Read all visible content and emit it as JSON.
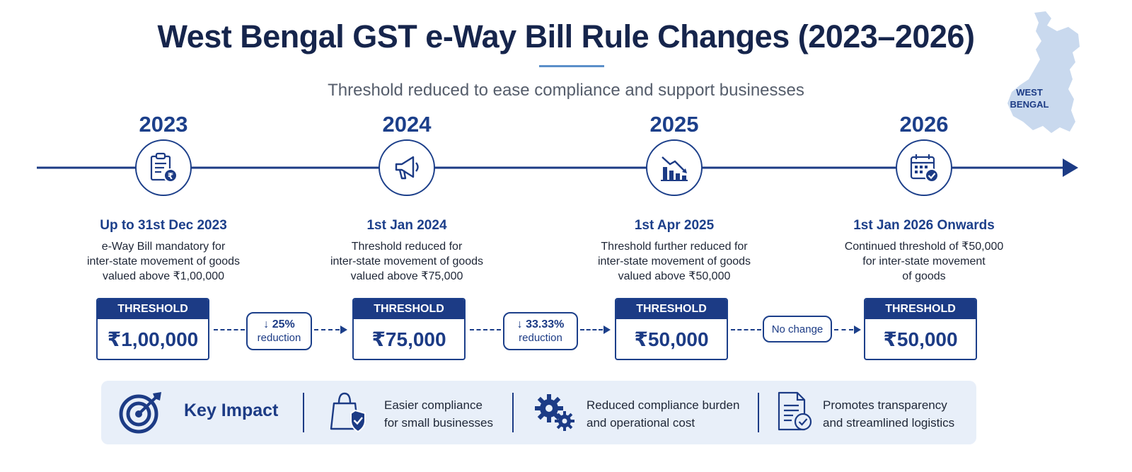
{
  "header": {
    "title": "West Bengal GST e-Way Bill Rule Changes (2023–2026)",
    "subtitle": "Threshold reduced to ease compliance and support businesses"
  },
  "map": {
    "label_line1": "WEST",
    "label_line2": "BENGAL"
  },
  "timeline": [
    {
      "year": "2023",
      "icon": "clipboard-rupee-icon",
      "date": "Up to 31st Dec 2023",
      "desc": [
        "e-Way Bill mandatory for",
        "inter-state movement of goods",
        "valued above ₹1,00,000"
      ],
      "threshold_label": "THRESHOLD",
      "threshold_value": "₹1,00,000"
    },
    {
      "year": "2024",
      "icon": "megaphone-icon",
      "date": "1st Jan 2024",
      "desc": [
        "Threshold reduced for",
        "inter-state movement of goods",
        "valued above ₹75,000"
      ],
      "threshold_label": "THRESHOLD",
      "threshold_value": "₹75,000"
    },
    {
      "year": "2025",
      "icon": "declining-chart-icon",
      "date": "1st Apr 2025",
      "desc": [
        "Threshold further reduced for",
        "inter-state movement of goods",
        "valued above ₹50,000"
      ],
      "threshold_label": "THRESHOLD",
      "threshold_value": "₹50,000"
    },
    {
      "year": "2026",
      "icon": "calendar-check-icon",
      "date": "1st Jan 2026 Onwards",
      "desc": [
        "Continued threshold of ₹50,000",
        "for inter-state movement",
        "of goods"
      ],
      "threshold_label": "THRESHOLD",
      "threshold_value": "₹50,000"
    }
  ],
  "transitions": [
    {
      "pct": "↓ 25%",
      "label": "reduction"
    },
    {
      "pct": "↓ 33.33%",
      "label": "reduction"
    },
    {
      "pct": "",
      "label": "No change"
    }
  ],
  "impact": {
    "title": "Key Impact",
    "items": [
      {
        "icon": "shopping-bag-shield-icon",
        "line1": "Easier compliance",
        "line2": "for small businesses"
      },
      {
        "icon": "gears-icon",
        "line1": "Reduced compliance burden",
        "line2": "and operational cost"
      },
      {
        "icon": "document-check-icon",
        "line1": "Promotes transparency",
        "line2": "and streamlined logistics"
      }
    ]
  },
  "colors": {
    "primary": "#1c3b85",
    "accent": "#5b8fc9",
    "impact_bg": "#e8eff9",
    "map_fill": "#c9d9ee"
  }
}
